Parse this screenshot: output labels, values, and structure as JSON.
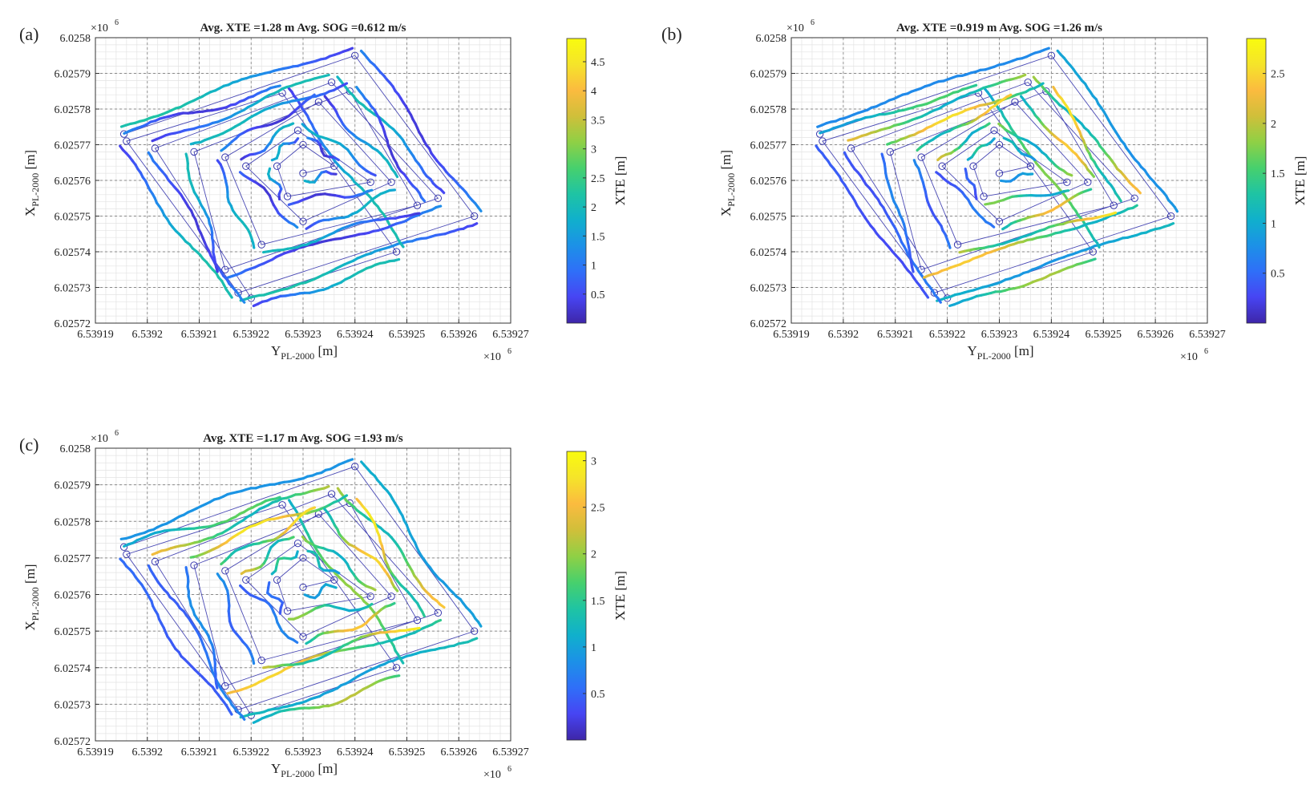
{
  "figure": {
    "colorbar_label": "XTE [m]",
    "x_axis_label_main": "Y",
    "x_axis_label_sub": "PL-2000",
    "x_axis_label_unit": " [m]",
    "y_axis_label_main": "X",
    "y_axis_label_sub": "PL-2000",
    "y_axis_label_unit": " [m]",
    "x_multiplier": "×10",
    "y_multiplier": "×10",
    "multiplier_exp": "6",
    "colormap": [
      "#3e26a8",
      "#4745f3",
      "#2f6ff8",
      "#1c91e7",
      "#10b0cc",
      "#1fc4a3",
      "#47d06d",
      "#8fd045",
      "#d0bf3a",
      "#fbbb3f",
      "#f5e42a",
      "#f9fb0e"
    ]
  },
  "chart_data": [
    {
      "type": "line",
      "panel_label": "(a)",
      "title": "Avg. XTE =1.28 m Avg. SOG =0.612 m/s",
      "xlabel": "Y_PL-2000 [m]",
      "ylabel": "X_PL-2000 [m]",
      "xlim": [
        6.53919,
        6.53927
      ],
      "ylim": [
        6.02572,
        6.0258
      ],
      "x_ticks": [
        "6.53919",
        "6.5392",
        "6.53921",
        "6.53922",
        "6.53923",
        "6.53924",
        "6.53925",
        "6.53926",
        "6.53927"
      ],
      "y_ticks": [
        "6.02572",
        "6.02573",
        "6.02574",
        "6.02575",
        "6.02576",
        "6.02577",
        "6.02578",
        "6.02579",
        "6.0258"
      ],
      "colorbar_ticks": [
        {
          "value": 0.5,
          "label": "0.5"
        },
        {
          "value": 1,
          "label": "1"
        },
        {
          "value": 1.5,
          "label": "1.5"
        },
        {
          "value": 2,
          "label": "2"
        },
        {
          "value": 2.5,
          "label": "2.5"
        },
        {
          "value": 3,
          "label": "3"
        },
        {
          "value": 3.5,
          "label": "3.5"
        },
        {
          "value": 4,
          "label": "4"
        },
        {
          "value": 4.5,
          "label": "4.5"
        }
      ],
      "colorbar_range": [
        0,
        4.9
      ],
      "avg_xte_m": 1.28,
      "avg_sog_ms": 0.612,
      "xte_band": [
        0.3,
        2.2
      ],
      "path_style": "smooth",
      "inner_outer_bias": 0.0,
      "grid": true
    },
    {
      "type": "line",
      "panel_label": "(b)",
      "title": "Avg. XTE =0.919 m Avg. SOG =1.26 m/s",
      "xlabel": "Y_PL-2000 [m]",
      "ylabel": "X_PL-2000 [m]",
      "xlim": [
        6.53919,
        6.53927
      ],
      "ylim": [
        6.02572,
        6.0258
      ],
      "x_ticks": [
        "6.53919",
        "6.5392",
        "6.53921",
        "6.53922",
        "6.53923",
        "6.53924",
        "6.53925",
        "6.53926",
        "6.53927"
      ],
      "y_ticks": [
        "6.02572",
        "6.02573",
        "6.02574",
        "6.02575",
        "6.02576",
        "6.02577",
        "6.02578",
        "6.02579",
        "6.0258"
      ],
      "colorbar_ticks": [
        {
          "value": 0.5,
          "label": "0.5"
        },
        {
          "value": 1,
          "label": "1"
        },
        {
          "value": 1.5,
          "label": "1.5"
        },
        {
          "value": 2,
          "label": "2"
        },
        {
          "value": 2.5,
          "label": "2.5"
        }
      ],
      "colorbar_range": [
        0,
        2.85
      ],
      "avg_xte_m": 0.919,
      "avg_sog_ms": 1.26,
      "xte_band": [
        0.1,
        2.6
      ],
      "path_style": "tight",
      "inner_outer_bias": 1.0,
      "grid": true
    },
    {
      "type": "line",
      "panel_label": "(c)",
      "title": "Avg. XTE =1.17 m Avg. SOG =1.93 m/s",
      "xlabel": "Y_PL-2000 [m]",
      "ylabel": "X_PL-2000 [m]",
      "xlim": [
        6.53919,
        6.53927
      ],
      "ylim": [
        6.02572,
        6.0258
      ],
      "x_ticks": [
        "6.53919",
        "6.5392",
        "6.53921",
        "6.53922",
        "6.53923",
        "6.53924",
        "6.53925",
        "6.53926",
        "6.53927"
      ],
      "y_ticks": [
        "6.02572",
        "6.02573",
        "6.02574",
        "6.02575",
        "6.02576",
        "6.02577",
        "6.02578",
        "6.02579",
        "6.0258"
      ],
      "colorbar_ticks": [
        {
          "value": 0.5,
          "label": "0.5"
        },
        {
          "value": 1,
          "label": "1"
        },
        {
          "value": 1.5,
          "label": "1.5"
        },
        {
          "value": 2,
          "label": "2"
        },
        {
          "value": 2.5,
          "label": "2.5"
        },
        {
          "value": 3,
          "label": "3"
        }
      ],
      "colorbar_range": [
        0,
        3.1
      ],
      "avg_xte_m": 1.17,
      "avg_sog_ms": 1.93,
      "xte_band": [
        0.2,
        2.9
      ],
      "path_style": "wavy",
      "inner_outer_bias": 0.6,
      "grid": true
    }
  ],
  "waypoints": {
    "description_units": "Y then X, in units of 1e6 m",
    "points": [
      [
        6.5391955,
        6.025773
      ],
      [
        6.53924,
        6.025795
      ],
      [
        6.539263,
        6.02575
      ],
      [
        6.5392175,
        6.0257285
      ],
      [
        6.539196,
        6.025771
      ],
      [
        6.539226,
        6.0257845
      ],
      [
        6.539248,
        6.02574
      ],
      [
        6.53922,
        6.025727
      ],
      [
        6.5392015,
        6.025769
      ],
      [
        6.5392355,
        6.0257875
      ],
      [
        6.539256,
        6.025755
      ],
      [
        6.539215,
        6.025735
      ],
      [
        6.539209,
        6.025768
      ],
      [
        6.539239,
        6.025785
      ],
      [
        6.539252,
        6.025753
      ],
      [
        6.539222,
        6.025742
      ],
      [
        6.539215,
        6.0257665
      ],
      [
        6.539233,
        6.025782
      ],
      [
        6.539247,
        6.0257595
      ],
      [
        6.53923,
        6.0257485
      ],
      [
        6.539219,
        6.025764
      ],
      [
        6.539229,
        6.025774
      ],
      [
        6.539243,
        6.0257595
      ],
      [
        6.539227,
        6.0257555
      ],
      [
        6.539225,
        6.025764
      ],
      [
        6.53923,
        6.02577
      ],
      [
        6.539236,
        6.025764
      ],
      [
        6.53923,
        6.025762
      ]
    ]
  }
}
